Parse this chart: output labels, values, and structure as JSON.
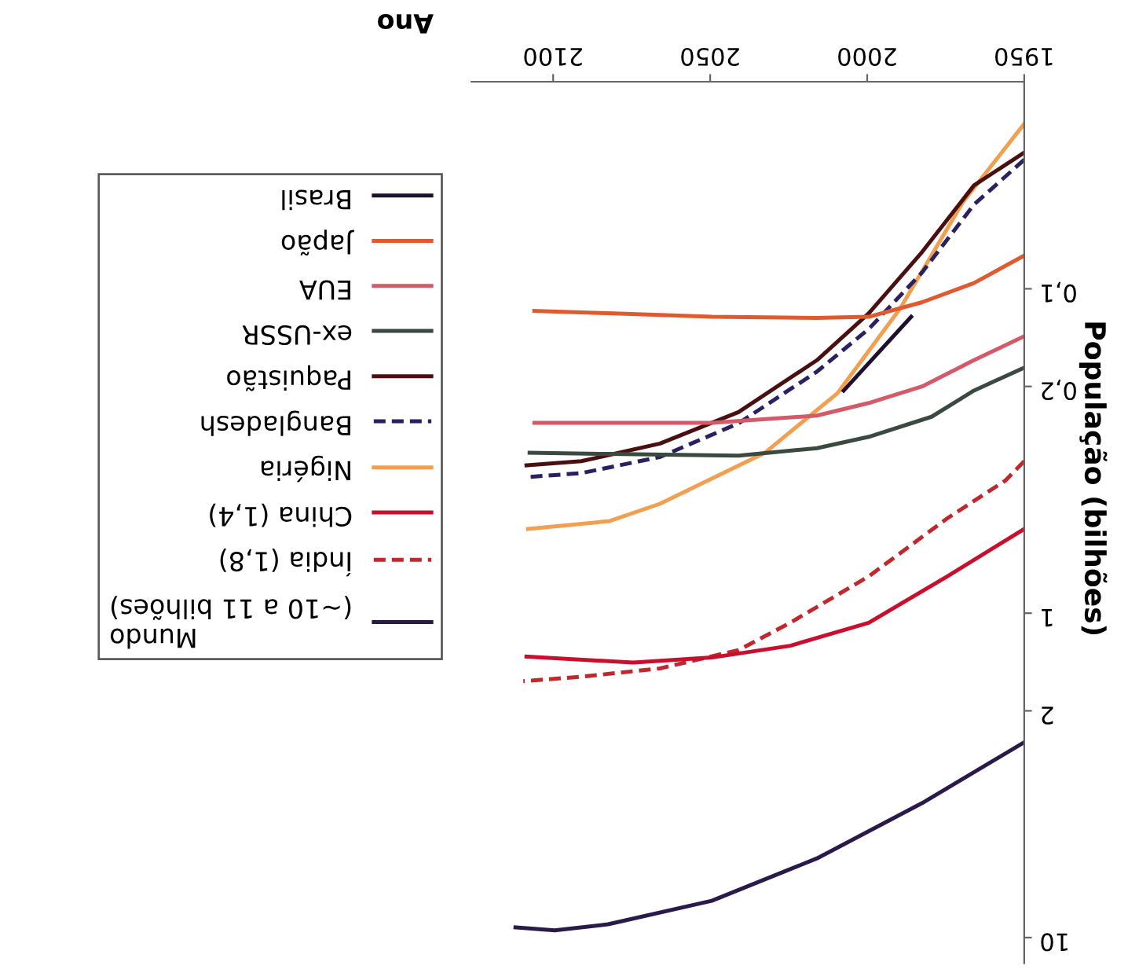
{
  "chart_data": {
    "type": "line",
    "xlabel": "Ano",
    "ylabel": "População (bilhões)",
    "log": "y",
    "xlim": [
      2126,
      1950
    ],
    "ylim": [
      12,
      0.023
    ],
    "xticks": [
      1950,
      2000,
      2050,
      2100
    ],
    "yticks": [
      {
        "value": 0.1,
        "label": "0,1"
      },
      {
        "value": 0.2,
        "label": "0,2"
      },
      1,
      2,
      10
    ],
    "grid": false,
    "legend": "left",
    "series": [
      {
        "name": "Mundo\n(~10 a 11 bilhões)",
        "color": "#2a1a4a",
        "line_style": "solid",
        "x": [
          1950,
          1982.5,
          2016,
          2049.5,
          2082.5,
          2099.5,
          2112
        ],
        "values": [
          2.5,
          3.85,
          5.7,
          7.7,
          9.1,
          9.5,
          9.3
        ]
      },
      {
        "name": "Índia (1,8)",
        "color": "#c0282d",
        "line_style": "dashed",
        "x": [
          1950,
          1956,
          1974.5,
          1999.5,
          2024.5,
          2041,
          2066,
          2091,
          2109.5
        ],
        "values": [
          0.34,
          0.39,
          0.51,
          0.77,
          1.07,
          1.3,
          1.48,
          1.57,
          1.62
        ]
      },
      {
        "name": "China (1,4)",
        "color": "#c8102e",
        "line_style": "solid",
        "x": [
          1950,
          1974.5,
          1999.5,
          2024.5,
          2049.5,
          2074.5,
          2108.5
        ],
        "values": [
          0.55,
          0.77,
          1.07,
          1.26,
          1.37,
          1.42,
          1.36
        ]
      },
      {
        "name": "Nigéria",
        "color": "#f0a050",
        "line_style": "solid",
        "x": [
          1950,
          1969.5,
          1989.5,
          2009.5,
          2032.5,
          2066,
          2082,
          2108
        ],
        "values": [
          0.031,
          0.054,
          0.115,
          0.21,
          0.32,
          0.46,
          0.52,
          0.55
        ]
      },
      {
        "name": "Bangladesh",
        "color": "#2b2060",
        "line_style": "dashed",
        "x": [
          1950,
          1966,
          1982.5,
          1999.5,
          2016,
          2041,
          2066,
          2091,
          2107.5
        ],
        "values": [
          0.04,
          0.055,
          0.089,
          0.133,
          0.18,
          0.26,
          0.33,
          0.37,
          0.38
        ]
      },
      {
        "name": "Paquistão",
        "color": "#4a1010",
        "line_style": "solid",
        "x": [
          1950,
          1966,
          1982.5,
          1999.5,
          2016,
          2041,
          2066,
          2091,
          2108.5
        ],
        "values": [
          0.038,
          0.048,
          0.077,
          0.119,
          0.166,
          0.24,
          0.3,
          0.34,
          0.35
        ]
      },
      {
        "name": "ex-USSR",
        "color": "#3a4a40",
        "line_style": "solid",
        "x": [
          1950,
          1966,
          1979.5,
          1999.5,
          2016,
          2041,
          2082.5,
          2107.5
        ],
        "values": [
          0.175,
          0.206,
          0.248,
          0.286,
          0.31,
          0.327,
          0.323,
          0.32
        ]
      },
      {
        "name": "EUA",
        "color": "#d45a6a",
        "line_style": "solid",
        "x": [
          1950,
          1966,
          1982.5,
          1999.5,
          2016,
          2049.5,
          2082.5,
          2106
        ],
        "values": [
          0.14,
          0.166,
          0.2,
          0.225,
          0.246,
          0.259,
          0.259,
          0.259
        ]
      },
      {
        "name": "Japão",
        "color": "#e05a30",
        "line_style": "solid",
        "x": [
          1950,
          1966,
          1982.5,
          1999.5,
          2016,
          2049.5,
          2082.5,
          2106
        ],
        "values": [
          0.079,
          0.096,
          0.11,
          0.122,
          0.123,
          0.122,
          0.119,
          0.117
        ]
      },
      {
        "name": "Brasil",
        "color": "#201030",
        "line_style": "solid",
        "x": [
          1986,
          2007.5
        ],
        "values": [
          0.122,
          0.206
        ]
      }
    ]
  }
}
